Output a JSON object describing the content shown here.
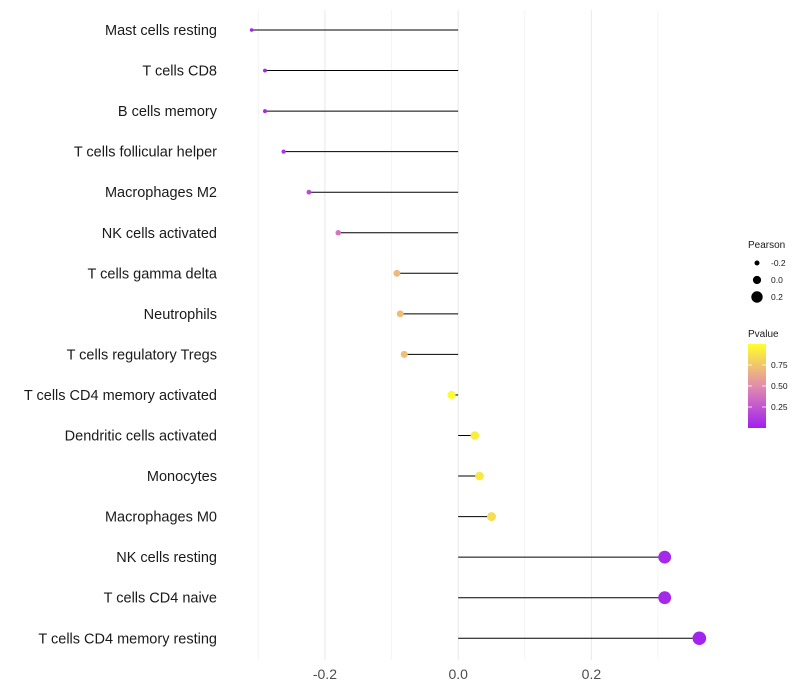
{
  "chart_data": {
    "type": "lollipop",
    "orientation": "horizontal",
    "categories": [
      "Mast cells resting",
      "T cells CD8",
      "B cells memory",
      "T cells follicular helper",
      "Macrophages M2",
      "NK cells activated",
      "T cells gamma delta",
      "Neutrophils",
      "T cells regulatory  Tregs",
      "T cells CD4 memory activated",
      "Dendritic cells activated",
      "Monocytes",
      "Macrophages M0",
      "NK cells resting",
      "T cells CD4 naive",
      "T cells CD4 memory resting"
    ],
    "pearson": [
      -0.31,
      -0.29,
      -0.29,
      -0.262,
      -0.224,
      -0.18,
      -0.092,
      -0.087,
      -0.081,
      -0.01,
      0.025,
      0.032,
      0.05,
      0.31,
      0.31,
      0.362
    ],
    "pvalue": [
      0.02,
      0.03,
      0.03,
      0.1,
      0.2,
      0.4,
      0.7,
      0.71,
      0.72,
      0.98,
      0.92,
      0.9,
      0.85,
      0.04,
      0.04,
      0.02
    ],
    "xlim": [
      -0.35,
      0.39
    ],
    "x_ticks": [
      -0.2,
      0.0,
      0.2
    ],
    "x_tick_labels": [
      "-0.2",
      "0.0",
      "0.2"
    ],
    "minor_x_ticks": [
      -0.3,
      -0.1,
      0.1,
      0.3
    ],
    "grid": true,
    "legend": {
      "size": {
        "title": "Pearson",
        "values": [
          -0.2,
          0.0,
          0.2
        ],
        "labels": [
          "-0.2",
          "0.0",
          "0.2"
        ]
      },
      "color": {
        "title": "Pvalue",
        "labels": [
          "0.75",
          "0.50",
          "0.25"
        ],
        "values": [
          0.75,
          0.5,
          0.25
        ],
        "range": [
          0.0,
          1.0
        ],
        "low_color": "#a020f0",
        "mid_color": "#e28cae",
        "high_color": "#ffff2a"
      },
      "position": "right"
    }
  }
}
